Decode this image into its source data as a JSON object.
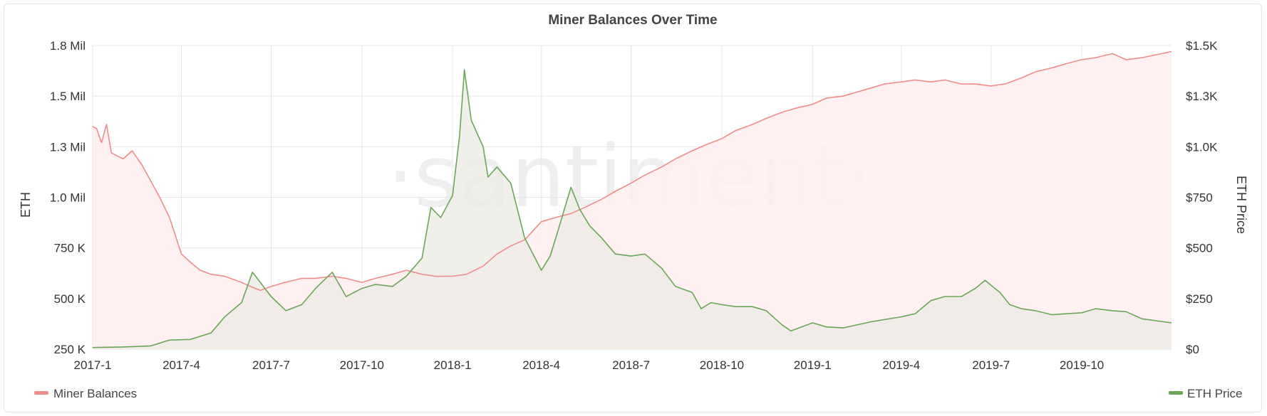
{
  "chart_data": {
    "type": "area",
    "title": "Miner Balances Over Time",
    "watermark": "·santiment·",
    "x_ticks": [
      "2017-1",
      "2017-4",
      "2017-7",
      "2017-10",
      "2018-1",
      "2018-4",
      "2018-7",
      "2018-10",
      "2019-1",
      "2019-4",
      "2019-7",
      "2019-10"
    ],
    "x_range": [
      "2017-01-01",
      "2019-12-31"
    ],
    "y_left": {
      "label": "ETH",
      "ticks": [
        "250 K",
        "500 K",
        "750 K",
        "1.0 Mil",
        "1.3 Mil",
        "1.5 Mil",
        "1.8 Mil"
      ],
      "tick_values": [
        250000,
        500000,
        750000,
        1000000,
        1250000,
        1500000,
        1750000
      ],
      "range": [
        250000,
        1750000
      ]
    },
    "y_right": {
      "label": "ETH Price",
      "ticks": [
        "$0",
        "$250",
        "$500",
        "$750",
        "$1.0K",
        "$1.3K",
        "$1.5K"
      ],
      "tick_values": [
        0,
        250,
        500,
        750,
        1000,
        1250,
        1500
      ],
      "range": [
        0,
        1500
      ]
    },
    "grid": true,
    "legend_placement": "bottom",
    "series": [
      {
        "name": "Miner Balances",
        "axis": "left",
        "color": "#f08c8c",
        "fill": "#ffeef0",
        "x": [
          "2017-01-01",
          "2017-01-05",
          "2017-01-10",
          "2017-01-15",
          "2017-01-20",
          "2017-02-01",
          "2017-02-10",
          "2017-02-20",
          "2017-03-01",
          "2017-03-10",
          "2017-03-20",
          "2017-04-01",
          "2017-04-10",
          "2017-04-20",
          "2017-05-01",
          "2017-05-15",
          "2017-06-01",
          "2017-06-10",
          "2017-06-20",
          "2017-07-01",
          "2017-07-15",
          "2017-08-01",
          "2017-08-15",
          "2017-09-01",
          "2017-09-15",
          "2017-10-01",
          "2017-10-15",
          "2017-11-01",
          "2017-11-15",
          "2017-12-01",
          "2017-12-15",
          "2018-01-01",
          "2018-01-15",
          "2018-02-01",
          "2018-02-15",
          "2018-03-01",
          "2018-03-15",
          "2018-04-01",
          "2018-04-15",
          "2018-05-01",
          "2018-05-15",
          "2018-06-01",
          "2018-06-15",
          "2018-07-01",
          "2018-07-15",
          "2018-08-01",
          "2018-08-15",
          "2018-09-01",
          "2018-09-15",
          "2018-10-01",
          "2018-10-15",
          "2018-11-01",
          "2018-11-15",
          "2018-12-01",
          "2018-12-15",
          "2019-01-01",
          "2019-01-15",
          "2019-02-01",
          "2019-02-15",
          "2019-03-01",
          "2019-03-15",
          "2019-04-01",
          "2019-04-15",
          "2019-05-01",
          "2019-05-15",
          "2019-06-01",
          "2019-06-15",
          "2019-07-01",
          "2019-07-15",
          "2019-08-01",
          "2019-08-15",
          "2019-09-01",
          "2019-09-15",
          "2019-10-01",
          "2019-10-15",
          "2019-11-01",
          "2019-11-15",
          "2019-12-01",
          "2019-12-31"
        ],
        "values": [
          1350000,
          1340000,
          1270000,
          1360000,
          1220000,
          1190000,
          1230000,
          1160000,
          1080000,
          1000000,
          900000,
          720000,
          680000,
          640000,
          620000,
          610000,
          580000,
          560000,
          540000,
          560000,
          580000,
          600000,
          600000,
          610000,
          600000,
          580000,
          600000,
          620000,
          640000,
          620000,
          610000,
          610000,
          620000,
          660000,
          720000,
          760000,
          790000,
          880000,
          900000,
          920000,
          950000,
          990000,
          1030000,
          1070000,
          1110000,
          1150000,
          1190000,
          1230000,
          1260000,
          1290000,
          1330000,
          1360000,
          1390000,
          1420000,
          1440000,
          1460000,
          1490000,
          1500000,
          1520000,
          1540000,
          1560000,
          1570000,
          1580000,
          1570000,
          1580000,
          1560000,
          1560000,
          1550000,
          1560000,
          1590000,
          1620000,
          1640000,
          1660000,
          1680000,
          1690000,
          1710000,
          1680000,
          1690000,
          1720000
        ]
      },
      {
        "name": "ETH Price",
        "axis": "right",
        "color": "#6aa656",
        "fill": "#eeebe4",
        "x": [
          "2017-01-01",
          "2017-02-01",
          "2017-03-01",
          "2017-03-20",
          "2017-04-10",
          "2017-05-01",
          "2017-05-15",
          "2017-06-01",
          "2017-06-12",
          "2017-06-20",
          "2017-07-01",
          "2017-07-16",
          "2017-08-01",
          "2017-08-15",
          "2017-09-01",
          "2017-09-15",
          "2017-10-01",
          "2017-10-15",
          "2017-11-01",
          "2017-11-15",
          "2017-12-01",
          "2017-12-10",
          "2017-12-20",
          "2018-01-01",
          "2018-01-08",
          "2018-01-13",
          "2018-01-20",
          "2018-02-01",
          "2018-02-06",
          "2018-02-15",
          "2018-03-01",
          "2018-03-15",
          "2018-04-01",
          "2018-04-10",
          "2018-04-20",
          "2018-05-01",
          "2018-05-10",
          "2018-05-20",
          "2018-06-01",
          "2018-06-15",
          "2018-07-01",
          "2018-07-15",
          "2018-08-01",
          "2018-08-15",
          "2018-09-01",
          "2018-09-10",
          "2018-09-20",
          "2018-10-01",
          "2018-10-15",
          "2018-11-01",
          "2018-11-15",
          "2018-12-01",
          "2018-12-10",
          "2019-01-01",
          "2019-01-15",
          "2019-02-01",
          "2019-03-01",
          "2019-04-01",
          "2019-04-15",
          "2019-05-01",
          "2019-05-15",
          "2019-06-01",
          "2019-06-15",
          "2019-06-25",
          "2019-07-10",
          "2019-07-20",
          "2019-08-01",
          "2019-08-15",
          "2019-09-01",
          "2019-09-15",
          "2019-10-01",
          "2019-10-15",
          "2019-11-01",
          "2019-11-15",
          "2019-12-01",
          "2019-12-31"
        ],
        "values": [
          8,
          11,
          16,
          45,
          48,
          80,
          160,
          230,
          380,
          330,
          260,
          190,
          220,
          300,
          380,
          260,
          300,
          320,
          310,
          360,
          450,
          700,
          650,
          760,
          1050,
          1380,
          1130,
          1000,
          850,
          900,
          820,
          550,
          390,
          460,
          620,
          800,
          690,
          610,
          550,
          470,
          460,
          470,
          400,
          310,
          280,
          200,
          230,
          220,
          210,
          210,
          190,
          120,
          90,
          130,
          110,
          105,
          135,
          160,
          175,
          240,
          260,
          260,
          300,
          340,
          280,
          220,
          200,
          190,
          170,
          175,
          180,
          200,
          190,
          185,
          150,
          130
        ]
      }
    ]
  }
}
